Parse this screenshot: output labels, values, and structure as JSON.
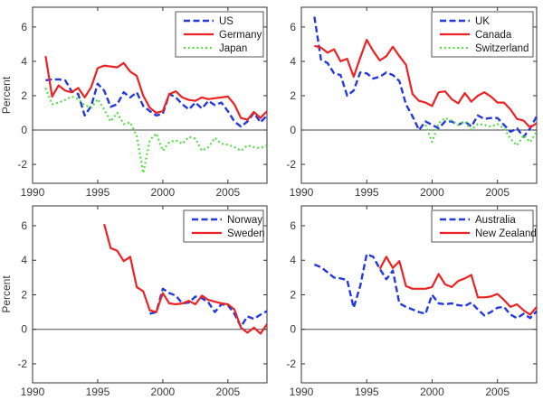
{
  "figure": {
    "background": "#ffffff",
    "ylabel": "Percent"
  },
  "colors": {
    "blue": "#2438e0",
    "red": "#ee2222",
    "green": "#57dd45",
    "axis": "#333333",
    "zero_line": "#4a4a4a",
    "tick_text": "#3a3a3a",
    "legend_text": "#1a1a1a",
    "legend_border": "#555555"
  },
  "chart_data": [
    {
      "type": "line",
      "panel": "top-left",
      "title": "",
      "xlabel": "",
      "ylabel": "Percent",
      "xlim": [
        1990,
        2008
      ],
      "ylim": [
        -3.1,
        7.15
      ],
      "x_tick_values": [
        1990,
        1995,
        2000,
        2005
      ],
      "x_tick_labels": [
        "1990",
        "1995",
        "2000",
        "2005"
      ],
      "y_tick_values": [
        -2,
        0,
        2,
        4,
        6
      ],
      "y_tick_labels": [
        "-2",
        "0",
        "2",
        "4",
        "6"
      ],
      "grid": false,
      "zero_line": true,
      "legend_position": "top-right",
      "series": [
        {
          "name": "US",
          "color": "blue",
          "style": "dashed",
          "x_start": 1991,
          "x_step": 0.5,
          "values": [
            2.9,
            2.95,
            2.95,
            2.9,
            2.25,
            2.1,
            0.85,
            1.4,
            2.7,
            2.3,
            1.35,
            1.5,
            2.2,
            1.9,
            2.2,
            1.4,
            1.1,
            0.85,
            0.95,
            2.1,
            1.9,
            1.5,
            1.2,
            1.6,
            1.25,
            1.7,
            1.45,
            1.6,
            1.1,
            0.5,
            0.2,
            0.5,
            1.0,
            0.45,
            0.85
          ]
        },
        {
          "name": "Germany",
          "color": "red",
          "style": "solid",
          "x_start": 1991,
          "x_step": 0.5,
          "values": [
            4.3,
            1.95,
            2.6,
            2.3,
            2.2,
            2.45,
            1.9,
            2.5,
            3.6,
            3.75,
            3.7,
            3.65,
            3.9,
            3.4,
            3.15,
            2.0,
            1.3,
            1.0,
            1.1,
            2.1,
            2.25,
            1.9,
            1.75,
            1.7,
            1.9,
            1.8,
            1.85,
            1.9,
            1.95,
            1.5,
            0.7,
            0.6,
            1.05,
            0.7,
            1.1
          ]
        },
        {
          "name": "Japan",
          "color": "green",
          "style": "dotted",
          "x_start": 1991,
          "x_step": 0.5,
          "values": [
            2.45,
            1.5,
            1.6,
            1.75,
            1.95,
            1.8,
            1.45,
            1.3,
            1.8,
            1.2,
            0.5,
            1.0,
            0.35,
            0.45,
            -0.35,
            -2.5,
            -0.6,
            -0.2,
            -1.2,
            -0.7,
            -0.6,
            -0.8,
            -0.4,
            -0.5,
            -1.2,
            -1.0,
            -0.45,
            -0.8,
            -0.85,
            -1.0,
            -1.2,
            -0.9,
            -1.0,
            -1.05,
            -0.9
          ]
        }
      ]
    },
    {
      "type": "line",
      "panel": "top-right",
      "title": "",
      "xlabel": "",
      "ylabel": "",
      "xlim": [
        1990,
        2008
      ],
      "ylim": [
        -3.1,
        7.15
      ],
      "x_tick_values": [
        1990,
        1995,
        2000,
        2005
      ],
      "x_tick_labels": [
        "1990",
        "1995",
        "2000",
        "2005"
      ],
      "y_tick_values": [
        -2,
        0,
        2,
        4,
        6
      ],
      "y_tick_labels": [
        "-2",
        "0",
        "2",
        "4",
        "6"
      ],
      "grid": false,
      "zero_line": true,
      "legend_position": "top-right",
      "series": [
        {
          "name": "UK",
          "color": "blue",
          "style": "dashed",
          "x_start": 1991,
          "x_step": 0.5,
          "values": [
            6.6,
            4.1,
            3.9,
            3.3,
            3.2,
            2.0,
            2.3,
            3.35,
            3.3,
            3.0,
            3.1,
            3.35,
            3.2,
            2.85,
            1.5,
            0.8,
            0.0,
            0.5,
            0.3,
            0.1,
            0.5,
            0.5,
            0.3,
            0.5,
            0.2,
            0.85,
            0.65,
            0.7,
            0.7,
            0.3,
            -0.1,
            0.1,
            -0.4,
            0.1,
            0.8
          ]
        },
        {
          "name": "Canada",
          "color": "red",
          "style": "solid",
          "x_start": 1991,
          "x_step": 0.5,
          "values": [
            4.9,
            4.8,
            4.5,
            4.7,
            4.0,
            4.15,
            3.1,
            4.2,
            5.25,
            4.6,
            4.05,
            4.3,
            4.85,
            4.3,
            3.8,
            2.1,
            1.7,
            1.6,
            1.4,
            2.2,
            2.25,
            1.8,
            1.55,
            2.15,
            1.65,
            2.0,
            2.2,
            1.95,
            1.6,
            1.6,
            1.2,
            0.65,
            0.55,
            0.15,
            0.4
          ]
        },
        {
          "name": "Switzerland",
          "color": "green",
          "style": "dotted",
          "x_start": 1999.5,
          "x_step": 0.5,
          "values": [
            0.3,
            -0.7,
            0.4,
            0.7,
            0.55,
            0.3,
            0.5,
            0.0,
            0.35,
            0.3,
            0.2,
            0.35,
            0.1,
            -0.5,
            -0.9,
            -0.3,
            -0.7,
            -0.1
          ]
        }
      ]
    },
    {
      "type": "line",
      "panel": "bottom-left",
      "title": "",
      "xlabel": "",
      "ylabel": "Percent",
      "xlim": [
        1990,
        2008
      ],
      "ylim": [
        -3.1,
        7.15
      ],
      "x_tick_values": [
        1990,
        1995,
        2000,
        2005
      ],
      "x_tick_labels": [
        "1990",
        "1995",
        "2000",
        "2005"
      ],
      "y_tick_values": [
        -2,
        0,
        2,
        4,
        6
      ],
      "y_tick_labels": [
        "-2",
        "0",
        "2",
        "4",
        "6"
      ],
      "grid": false,
      "zero_line": true,
      "legend_position": "top-right",
      "series": [
        {
          "name": "Norway",
          "color": "blue",
          "style": "dashed",
          "x_start": 1999,
          "x_step": 0.5,
          "values": [
            0.9,
            1.0,
            2.35,
            2.1,
            1.95,
            1.5,
            1.55,
            1.9,
            1.8,
            1.55,
            1.0,
            1.45,
            1.4,
            0.9,
            0.15,
            0.75,
            0.6,
            0.85,
            1.05
          ]
        },
        {
          "name": "Sweden",
          "color": "red",
          "style": "solid",
          "x_start": 1995.5,
          "x_step": 0.5,
          "values": [
            6.1,
            4.7,
            4.55,
            3.95,
            4.2,
            2.45,
            2.2,
            1.1,
            1.0,
            2.1,
            1.5,
            1.45,
            1.5,
            1.65,
            1.45,
            1.95,
            1.7,
            1.6,
            1.5,
            1.45,
            1.15,
            0.1,
            -0.2,
            0.1,
            -0.25,
            0.3
          ]
        }
      ]
    },
    {
      "type": "line",
      "panel": "bottom-right",
      "title": "",
      "xlabel": "",
      "ylabel": "",
      "xlim": [
        1990,
        2008
      ],
      "ylim": [
        -3.1,
        7.15
      ],
      "x_tick_values": [
        1990,
        1995,
        2000,
        2005
      ],
      "x_tick_labels": [
        "1990",
        "1995",
        "2000",
        "2005"
      ],
      "y_tick_values": [
        -2,
        0,
        2,
        4,
        6
      ],
      "y_tick_labels": [
        "-2",
        "0",
        "2",
        "4",
        "6"
      ],
      "grid": false,
      "zero_line": true,
      "legend_position": "top-right",
      "series": [
        {
          "name": "Australia",
          "color": "blue",
          "style": "dashed",
          "x_start": 1991,
          "x_step": 0.5,
          "values": [
            3.75,
            3.6,
            3.3,
            3.0,
            2.95,
            2.85,
            1.25,
            2.5,
            4.35,
            4.2,
            3.5,
            2.9,
            3.4,
            1.5,
            1.3,
            1.15,
            1.0,
            0.9,
            2.0,
            1.5,
            1.45,
            1.5,
            1.4,
            1.35,
            1.55,
            1.15,
            0.8,
            1.0,
            1.25,
            1.3,
            0.85,
            0.65,
            0.9,
            0.65,
            1.05
          ]
        },
        {
          "name": "New Zealand",
          "color": "red",
          "style": "solid",
          "x_start": 1996,
          "x_step": 0.5,
          "values": [
            3.5,
            4.2,
            3.55,
            3.95,
            2.5,
            2.35,
            2.35,
            2.35,
            2.45,
            3.2,
            2.6,
            2.45,
            2.8,
            2.95,
            3.15,
            1.85,
            1.85,
            1.9,
            2.05,
            1.7,
            1.3,
            1.45,
            1.1,
            0.85,
            1.3
          ]
        }
      ]
    }
  ]
}
